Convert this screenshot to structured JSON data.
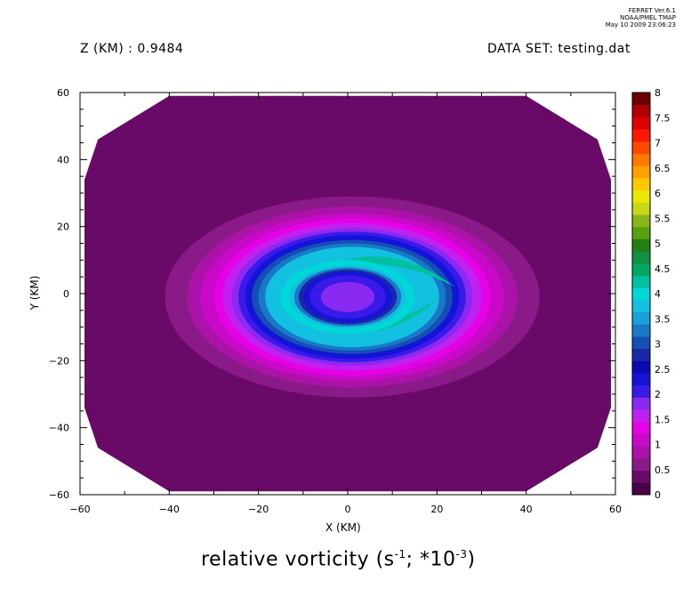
{
  "stamp": [
    "FERRET Ver.6.1",
    "NOAA/PMEL TMAP",
    "May 10 2009 23:06:23"
  ],
  "header": {
    "z_label": "Z (KM) : 0.9484",
    "dataset_label": "DATA SET: testing.dat"
  },
  "caption": {
    "text_before": "relative vorticity (s",
    "sup1": "-1",
    "text_mid": "; *10",
    "sup2": "-3",
    "text_after": ")"
  },
  "chart_data": {
    "type": "contour",
    "xlabel": "X (KM)",
    "ylabel": "Y (KM)",
    "xlim": [
      -60,
      60
    ],
    "ylim": [
      -60,
      60
    ],
    "xticks": [
      -60,
      -40,
      -20,
      0,
      20,
      40,
      60
    ],
    "yticks": [
      -60,
      -40,
      -20,
      0,
      20,
      40,
      60
    ],
    "colorbar": {
      "levels": [
        0,
        0.25,
        0.5,
        0.75,
        1,
        1.25,
        1.5,
        1.75,
        2,
        2.25,
        2.5,
        2.75,
        3,
        3.25,
        3.5,
        3.75,
        4,
        4.25,
        4.5,
        4.75,
        5,
        5.25,
        5.5,
        5.75,
        6,
        6.25,
        6.5,
        6.75,
        7,
        7.25,
        7.5,
        7.75,
        8
      ],
      "labels": [
        "0",
        "0.5",
        "1",
        "1.5",
        "2",
        "2.5",
        "3",
        "3.5",
        "4",
        "4.5",
        "5",
        "5.5",
        "6",
        "6.5",
        "7",
        "7.5",
        "8"
      ],
      "colors": [
        "#4a0048",
        "#6a0a68",
        "#8a1a88",
        "#aa12a8",
        "#c80ac8",
        "#e600e6",
        "#c020f0",
        "#8a2af0",
        "#3a1ae8",
        "#1414d8",
        "#0a0ab4",
        "#1a28a8",
        "#1450b4",
        "#1a78c8",
        "#1aa0d8",
        "#12c0e0",
        "#00d8d8",
        "#00c0a0",
        "#00a860",
        "#109040",
        "#208010",
        "#58a010",
        "#88b818",
        "#c8d818",
        "#e8e800",
        "#ffc800",
        "#ffa000",
        "#ff7800",
        "#ff4800",
        "#ff1800",
        "#e00000",
        "#b00000",
        "#6a0000"
      ]
    },
    "bands": [
      {
        "level": 0.25,
        "shape": "octagon",
        "rx": 60,
        "ry": 59
      },
      {
        "level": 0.5,
        "shape": "ellipse",
        "cx": 1,
        "cy": -1,
        "rx": 42,
        "ry": 30
      },
      {
        "level": 0.75,
        "shape": "ellipse",
        "cx": 1,
        "cy": -1,
        "rx": 37,
        "ry": 27
      },
      {
        "level": 1,
        "shape": "ellipse",
        "cx": 1,
        "cy": -1,
        "rx": 34,
        "ry": 25
      },
      {
        "level": 1.25,
        "shape": "ellipse",
        "cx": 1,
        "cy": -1,
        "rx": 31,
        "ry": 23.5
      },
      {
        "level": 1.5,
        "shape": "ellipse",
        "cx": 1,
        "cy": -1,
        "rx": 29,
        "ry": 22
      },
      {
        "level": 1.75,
        "shape": "ellipse",
        "cx": 1,
        "cy": -1,
        "rx": 27,
        "ry": 20.5
      },
      {
        "level": 2,
        "shape": "ellipse",
        "cx": 1,
        "cy": -1,
        "rx": 25.5,
        "ry": 19.5
      },
      {
        "level": 2.25,
        "shape": "ellipse",
        "cx": 1,
        "cy": -1,
        "rx": 24,
        "ry": 18.5
      },
      {
        "level": 3,
        "shape": "ellipse",
        "cx": 1,
        "cy": -1,
        "rx": 22.5,
        "ry": 17
      },
      {
        "level": 3.25,
        "shape": "ellipse",
        "cx": 1,
        "cy": -1,
        "rx": 21,
        "ry": 16
      },
      {
        "level": 3.75,
        "shape": "ellipse",
        "cx": 1,
        "cy": -1,
        "rx": 19.5,
        "ry": 15
      },
      {
        "level": 4.25,
        "shape": "crescent-upper",
        "cx": 8,
        "cy": 6,
        "rx": 10,
        "ry": 4
      },
      {
        "level": 4.25,
        "shape": "crescent-lower",
        "cx": 5,
        "cy": -9,
        "rx": 13,
        "ry": 4
      },
      {
        "level": 4,
        "shape": "ellipse",
        "cx": 0,
        "cy": -1,
        "rx": 15,
        "ry": 11
      },
      {
        "level": 3.75,
        "shape": "ellipse",
        "cx": 0,
        "cy": -1,
        "rx": 13,
        "ry": 9.5
      },
      {
        "level": 3.25,
        "shape": "ellipse",
        "cx": 0,
        "cy": -1,
        "rx": 12,
        "ry": 8.8
      },
      {
        "level": 2.75,
        "shape": "ellipse",
        "cx": 0,
        "cy": -1,
        "rx": 11,
        "ry": 8.2
      },
      {
        "level": 2.25,
        "shape": "ellipse",
        "cx": 0,
        "cy": -1,
        "rx": 10,
        "ry": 7.5
      },
      {
        "level": 2,
        "shape": "ellipse",
        "cx": 0,
        "cy": -1,
        "rx": 8.5,
        "ry": 6.5
      },
      {
        "level": 1.75,
        "shape": "ellipse",
        "cx": 0,
        "cy": -1,
        "rx": 6,
        "ry": 4.5
      }
    ]
  }
}
